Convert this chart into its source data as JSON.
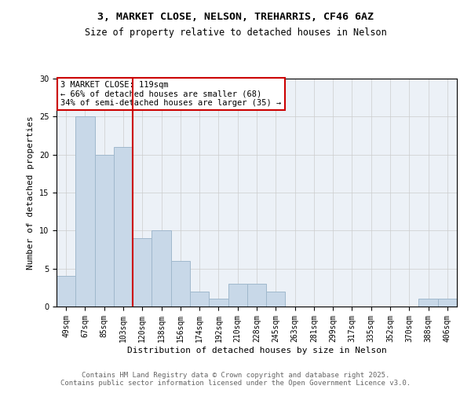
{
  "title_line1": "3, MARKET CLOSE, NELSON, TREHARRIS, CF46 6AZ",
  "title_line2": "Size of property relative to detached houses in Nelson",
  "xlabel": "Distribution of detached houses by size in Nelson",
  "ylabel": "Number of detached properties",
  "bar_labels": [
    "49sqm",
    "67sqm",
    "85sqm",
    "103sqm",
    "120sqm",
    "138sqm",
    "156sqm",
    "174sqm",
    "192sqm",
    "210sqm",
    "228sqm",
    "245sqm",
    "263sqm",
    "281sqm",
    "299sqm",
    "317sqm",
    "335sqm",
    "352sqm",
    "370sqm",
    "388sqm",
    "406sqm"
  ],
  "bar_values": [
    4,
    25,
    20,
    21,
    9,
    10,
    6,
    2,
    1,
    3,
    3,
    2,
    0,
    0,
    0,
    0,
    0,
    0,
    0,
    1,
    1
  ],
  "bar_color": "#c8d8e8",
  "bar_edgecolor": "#a0b8cc",
  "vline_x": 3.5,
  "vline_color": "#cc0000",
  "annotation_text": "3 MARKET CLOSE: 119sqm\n← 66% of detached houses are smaller (68)\n34% of semi-detached houses are larger (35) →",
  "annotation_box_edgecolor": "#cc0000",
  "ylim": [
    0,
    30
  ],
  "yticks": [
    0,
    5,
    10,
    15,
    20,
    25,
    30
  ],
  "grid_color": "#cccccc",
  "background_color": "#ecf1f7",
  "footer_text": "Contains HM Land Registry data © Crown copyright and database right 2025.\nContains public sector information licensed under the Open Government Licence v3.0.",
  "title_fontsize": 9.5,
  "subtitle_fontsize": 8.5,
  "axis_label_fontsize": 8,
  "tick_fontsize": 7,
  "annotation_fontsize": 7.5,
  "footer_fontsize": 6.5
}
